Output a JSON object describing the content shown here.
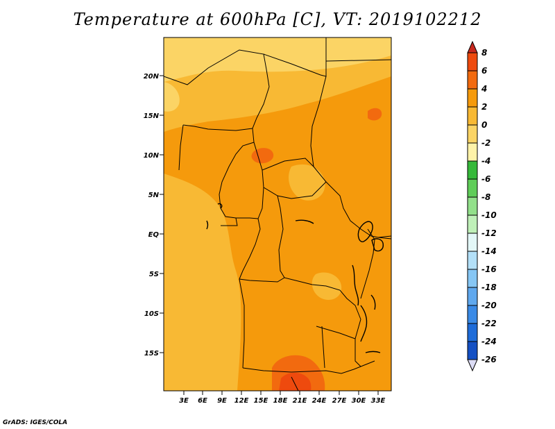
{
  "title": "Temperature at 600hPa [C], VT: 2019102212",
  "credit": "GrADS: IGES/COLA",
  "map": {
    "lat_labels": [
      "20N",
      "15N",
      "10N",
      "5N",
      "EQ",
      "5S",
      "10S",
      "15S"
    ],
    "lon_labels": [
      "3E",
      "6E",
      "9E",
      "12E",
      "15E",
      "18E",
      "21E",
      "24E",
      "27E",
      "30E",
      "33E"
    ]
  },
  "colorbar": {
    "levels": [
      "8",
      "6",
      "4",
      "2",
      "0",
      "-2",
      "-4",
      "-6",
      "-8",
      "-10",
      "-12",
      "-14",
      "-16",
      "-18",
      "-20",
      "-22",
      "-24",
      "-26"
    ],
    "colors": [
      "#c8281e",
      "#ee4a0e",
      "#f26a0f",
      "#f59a0c",
      "#f8b934",
      "#fbd465",
      "#fff3a9",
      "#36b93a",
      "#5fcd58",
      "#92e08a",
      "#bff0b8",
      "#e3f7f7",
      "#b3e0f8",
      "#86c6f4",
      "#5fa8ee",
      "#3a8ae6",
      "#1e6cd9",
      "#1450c3",
      "#0c37a6",
      "#0b1f6e"
    ],
    "low_arrow_color": "#dcdcf5"
  }
}
